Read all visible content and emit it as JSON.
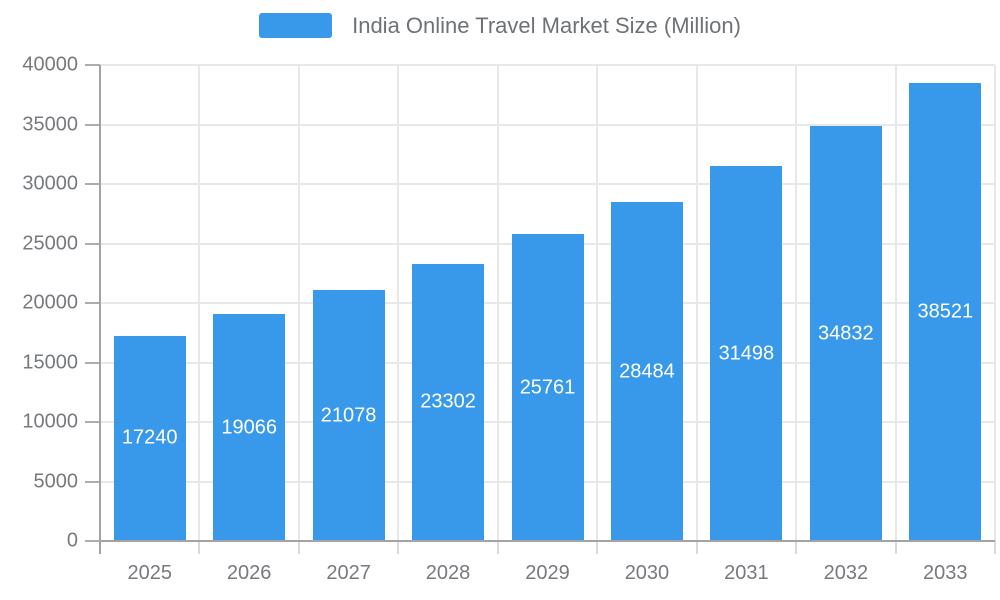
{
  "chart_data": {
    "type": "bar",
    "title": "India Online Travel Market Size (Million)",
    "series_name": "India Online Travel Market Size (Million)",
    "categories": [
      "2025",
      "2026",
      "2027",
      "2028",
      "2029",
      "2030",
      "2031",
      "2032",
      "2033"
    ],
    "values": [
      17240,
      19066,
      21078,
      23302,
      25761,
      28484,
      31498,
      34832,
      38521
    ],
    "xlabel": "",
    "ylabel": "",
    "ylim": [
      0,
      40000
    ],
    "ytick_step": 5000,
    "grid": true,
    "legend_position": "top-center",
    "value_labels": "inside-center-white",
    "colors": {
      "bar": "#3899EB",
      "value_label_text": "#FFFFFF",
      "axis_text": "#76797E",
      "legend_text": "#6E7176",
      "axis_line": "#A3A3A3",
      "grid_line": "#E8E8E8",
      "tick_y": "#ADADAD",
      "tick_x": "#D9D9D9"
    }
  }
}
